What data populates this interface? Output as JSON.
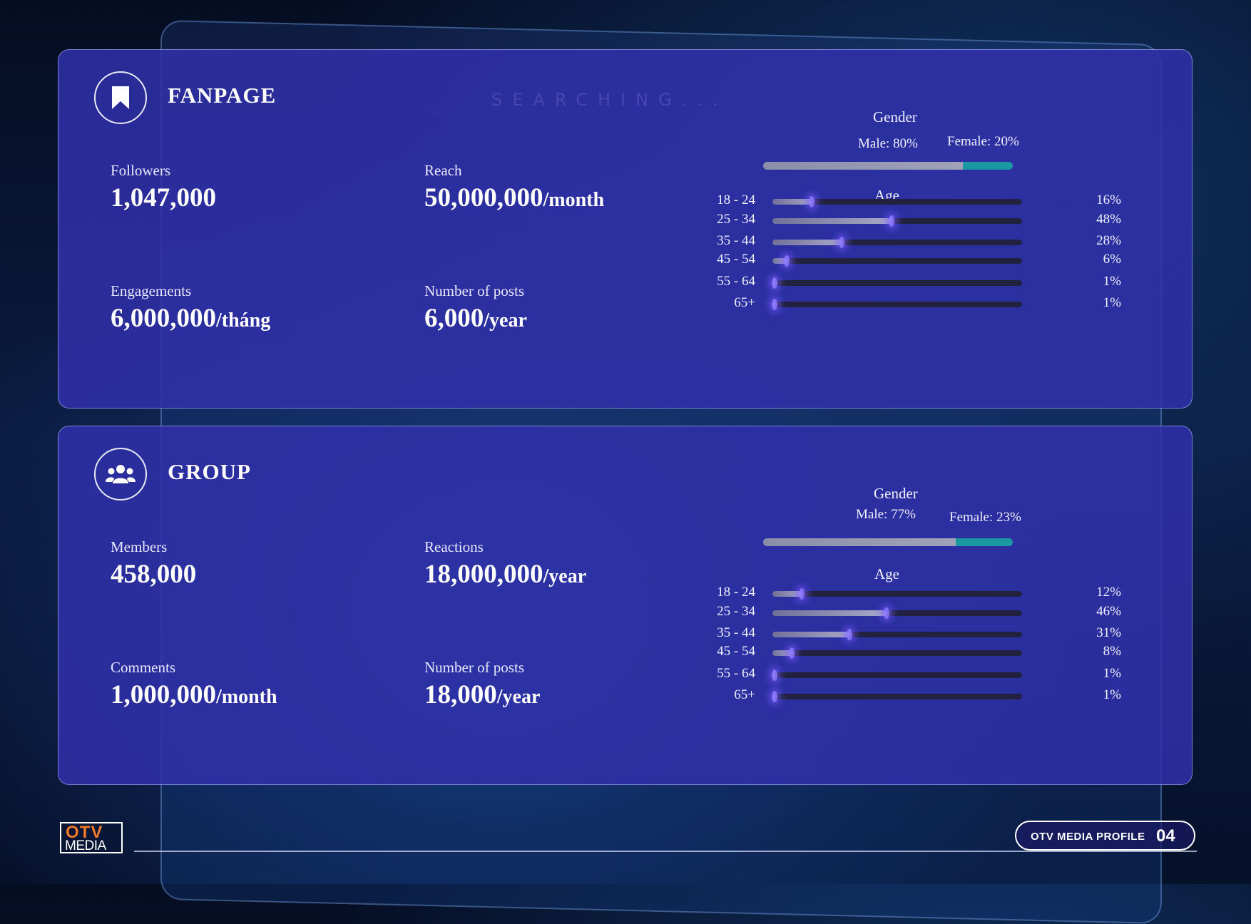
{
  "fanpage": {
    "title": "FANPAGE",
    "icon": "bookmark-icon",
    "stats": {
      "followers": {
        "label": "Followers",
        "value": "1,047,000",
        "unit": ""
      },
      "reach": {
        "label": "Reach",
        "value": "50,000,000",
        "unit": "/month"
      },
      "engagements": {
        "label": "Engagements",
        "value": "6,000,000",
        "unit": "/tháng"
      },
      "posts": {
        "label": "Number of posts",
        "value": "6,000",
        "unit": "/year"
      }
    },
    "gender": {
      "title": "Gender",
      "male_label": "Male: 80%",
      "female_label": "Female: 20%",
      "male_pct": 80,
      "female_pct": 20
    },
    "age": {
      "title": "Age",
      "rows": [
        {
          "label": "18 - 24",
          "pct_label": "16%",
          "value": 16
        },
        {
          "label": "25 - 34",
          "pct_label": "48%",
          "value": 48
        },
        {
          "label": "35 - 44",
          "pct_label": "28%",
          "value": 28
        },
        {
          "label": "45 - 54",
          "pct_label": "6%",
          "value": 6
        },
        {
          "label": "55 - 64",
          "pct_label": "1%",
          "value": 1
        },
        {
          "label": "65+",
          "pct_label": "1%",
          "value": 1
        }
      ]
    }
  },
  "group": {
    "title": "GROUP",
    "icon": "users-icon",
    "stats": {
      "members": {
        "label": "Members",
        "value": "458,000",
        "unit": ""
      },
      "reactions": {
        "label": "Reactions",
        "value": "18,000,000",
        "unit": "/year"
      },
      "comments": {
        "label": "Comments",
        "value": "1,000,000",
        "unit": "/month"
      },
      "posts": {
        "label": "Number of posts",
        "value": "18,000",
        "unit": "/year"
      }
    },
    "gender": {
      "title": "Gender",
      "male_label": "Male: 77%",
      "female_label": "Female: 23%",
      "male_pct": 77,
      "female_pct": 23
    },
    "age": {
      "title": "Age",
      "rows": [
        {
          "label": "18 - 24",
          "pct_label": "12%",
          "value": 12
        },
        {
          "label": "25 - 34",
          "pct_label": "46%",
          "value": 46
        },
        {
          "label": "35 - 44",
          "pct_label": "31%",
          "value": 31
        },
        {
          "label": "45 - 54",
          "pct_label": "8%",
          "value": 8
        },
        {
          "label": "55 - 64",
          "pct_label": "1%",
          "value": 1
        },
        {
          "label": "65+",
          "pct_label": "1%",
          "value": 1
        }
      ]
    }
  },
  "background": {
    "watermark": "SEARCHING..."
  },
  "footer": {
    "logo_top": "OTV",
    "logo_bottom": "MEDIA",
    "badge_text": "OTV MEDIA PROFILE",
    "page_number": "04"
  },
  "colors": {
    "card": "#3030aa",
    "female_bar": "#1a9aa0",
    "male_bar": "#9a9db4",
    "logo_orange": "#f07a2a"
  }
}
